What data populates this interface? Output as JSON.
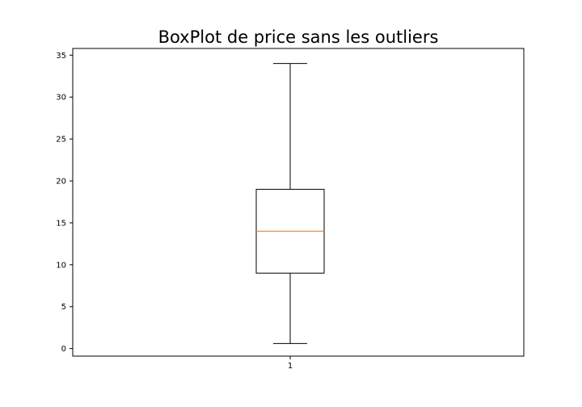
{
  "chart_data": {
    "type": "box",
    "title": "BoxPlot de price sans les outliers",
    "xlabel": "",
    "ylabel": "",
    "categories": [
      "1"
    ],
    "boxes": [
      {
        "label": "1",
        "whisker_low": 0.6,
        "q1": 9.0,
        "median": 14.0,
        "q3": 19.0,
        "whisker_high": 34.0
      }
    ],
    "ylim": [
      -0.9,
      35.8
    ],
    "yticks": [
      0,
      5,
      10,
      15,
      20,
      25,
      30,
      35
    ],
    "grid": false,
    "legend": "none",
    "colors": {
      "box": "#000000",
      "median": "#ff7f0e",
      "axes": "#000000"
    }
  }
}
